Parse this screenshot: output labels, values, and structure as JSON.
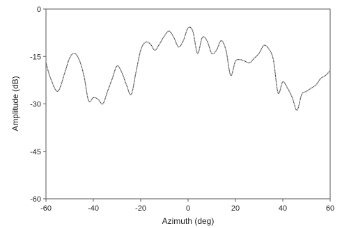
{
  "chart_data": {
    "type": "line",
    "title": "",
    "xlabel": "Azimuth (deg)",
    "ylabel": "Amplitude (dB)",
    "xlim": [
      -60,
      60
    ],
    "ylim": [
      -60,
      0
    ],
    "xticks": [
      -60,
      -40,
      -20,
      0,
      20,
      40,
      60
    ],
    "yticks": [
      0,
      -15,
      -30,
      -45,
      -60
    ],
    "xtick_labels": [
      "-60",
      "-40",
      "-20",
      "0",
      "20",
      "40",
      "60"
    ],
    "ytick_labels": [
      "0",
      "-15",
      "-30",
      "-45",
      "-60"
    ],
    "grid": false,
    "legend": "none",
    "series": [
      {
        "color": "#444444",
        "x": [
          -60,
          -58,
          -55,
          -52,
          -50,
          -48,
          -46,
          -44,
          -42,
          -40,
          -38,
          -36,
          -34,
          -32,
          -30,
          -28,
          -26,
          -24,
          -22,
          -20,
          -18,
          -16,
          -14,
          -12,
          -10,
          -8,
          -6,
          -4,
          -2,
          0,
          2,
          4,
          6,
          8,
          10,
          12,
          14,
          16,
          18,
          20,
          22,
          24,
          26,
          28,
          30,
          32,
          34,
          36,
          38,
          40,
          42,
          44,
          46,
          48,
          50,
          52,
          54,
          56,
          58,
          60
        ],
        "y": [
          -17,
          -22,
          -26,
          -20,
          -15.5,
          -14,
          -16,
          -21,
          -29,
          -28,
          -28.5,
          -30,
          -26,
          -22,
          -18,
          -20,
          -24,
          -27,
          -20,
          -13,
          -10.5,
          -11,
          -13,
          -11,
          -8.5,
          -7,
          -9,
          -12,
          -10,
          -6,
          -7,
          -14,
          -9,
          -10,
          -14,
          -13,
          -10,
          -13,
          -21,
          -16.5,
          -16,
          -16.5,
          -17,
          -15.5,
          -14,
          -11.5,
          -12.5,
          -16,
          -26.5,
          -23,
          -25,
          -28,
          -32,
          -27,
          -26,
          -25,
          -24,
          -22,
          -21,
          -19.5
        ]
      }
    ]
  }
}
